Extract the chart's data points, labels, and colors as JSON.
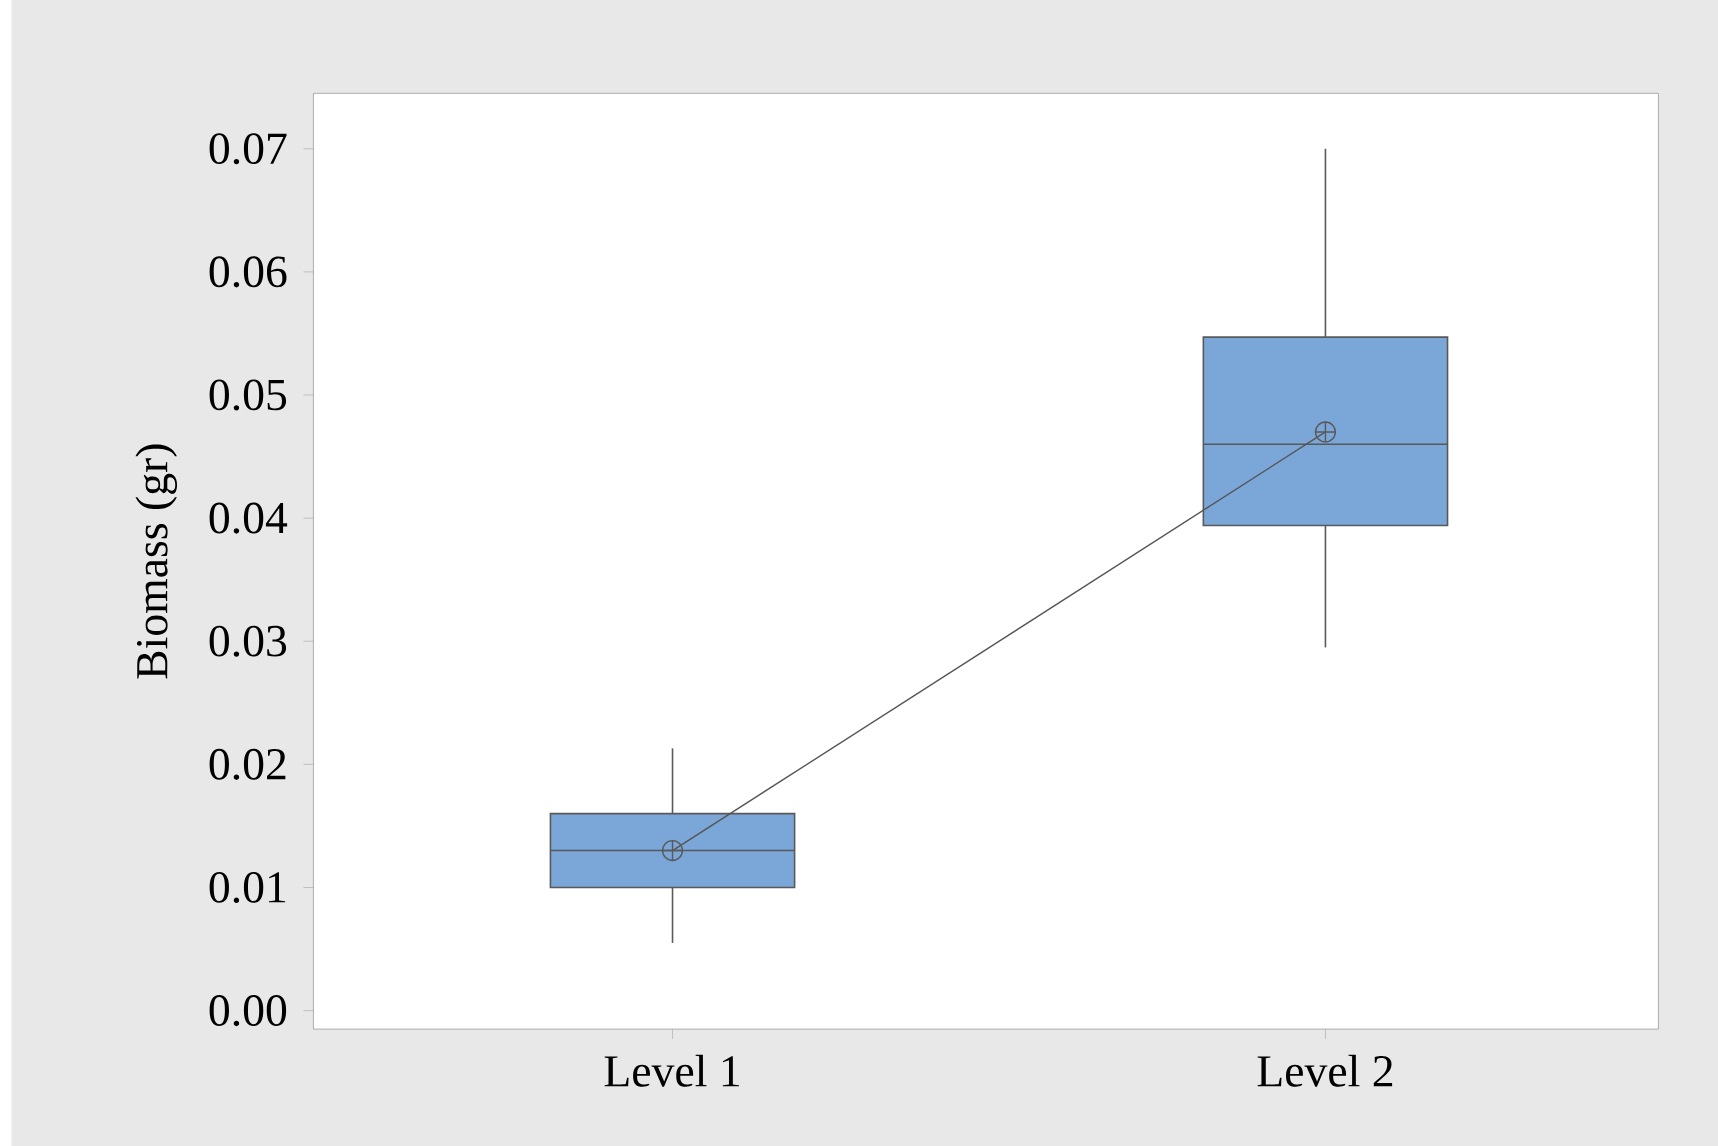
{
  "chart_data": {
    "type": "box",
    "ylabel": "Biomass (gr)",
    "categories": [
      "Level 1",
      "Level 2"
    ],
    "color": "#7aa6d8",
    "boxes": [
      {
        "low": 0.0055,
        "q1": 0.01,
        "median": 0.013,
        "q3": 0.016,
        "high": 0.0213,
        "mean": 0.013
      },
      {
        "low": 0.0295,
        "q1": 0.0394,
        "median": 0.046,
        "q3": 0.0547,
        "high": 0.07,
        "mean": 0.047
      }
    ],
    "series": [
      {
        "type": "line",
        "color": "#555555",
        "values": [
          0.013,
          0.047
        ]
      }
    ],
    "ylim": [
      -0.0015,
      0.0745
    ],
    "yticks": [
      {
        "value": 0,
        "label": "0.00"
      },
      {
        "value": 0.01,
        "label": "0.01"
      },
      {
        "value": 0.02,
        "label": "0.02"
      },
      {
        "value": 0.03,
        "label": "0.03"
      },
      {
        "value": 0.04,
        "label": "0.04"
      },
      {
        "value": 0.05,
        "label": "0.05"
      },
      {
        "value": 0.06,
        "label": "0.06"
      },
      {
        "value": 0.07,
        "label": "0.07"
      }
    ],
    "grid": false
  }
}
